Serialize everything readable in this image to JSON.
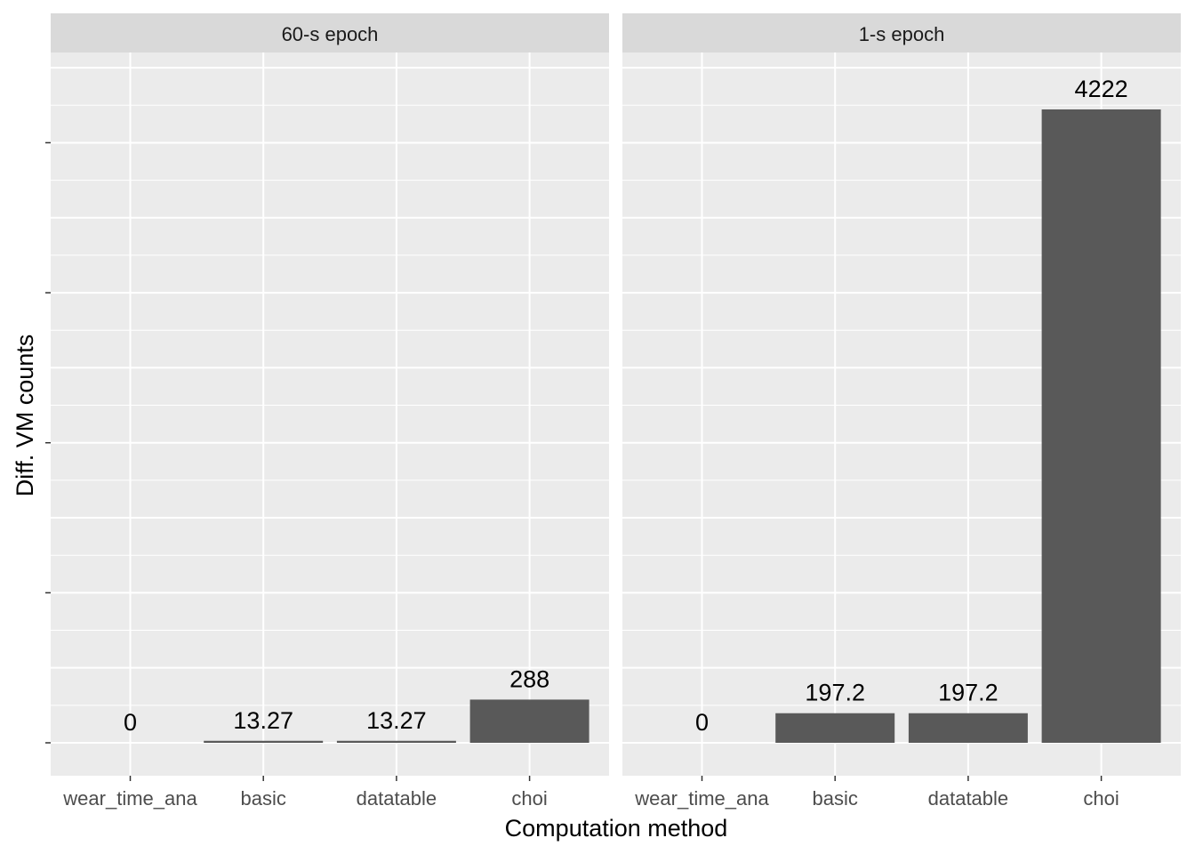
{
  "chart_data": {
    "type": "bar",
    "xlabel": "Computation method",
    "ylabel": "Diff. VM counts",
    "categories": [
      "wear_time_ana",
      "basic",
      "datatable",
      "choi"
    ],
    "bar_color": "#595959",
    "panel_background": "#ebebeb",
    "strip_background": "#d9d9d9",
    "grid": true,
    "ylim": [
      -230,
      4600
    ],
    "panels": [
      {
        "title": "60-s epoch",
        "values": [
          0,
          13.27,
          13.27,
          288
        ],
        "labels": [
          "0",
          "13.27",
          "13.27",
          "288"
        ]
      },
      {
        "title": "1-s epoch",
        "values": [
          0,
          197.2,
          197.2,
          4222
        ],
        "labels": [
          "0",
          "197.2",
          "197.2",
          "4222"
        ]
      }
    ]
  }
}
